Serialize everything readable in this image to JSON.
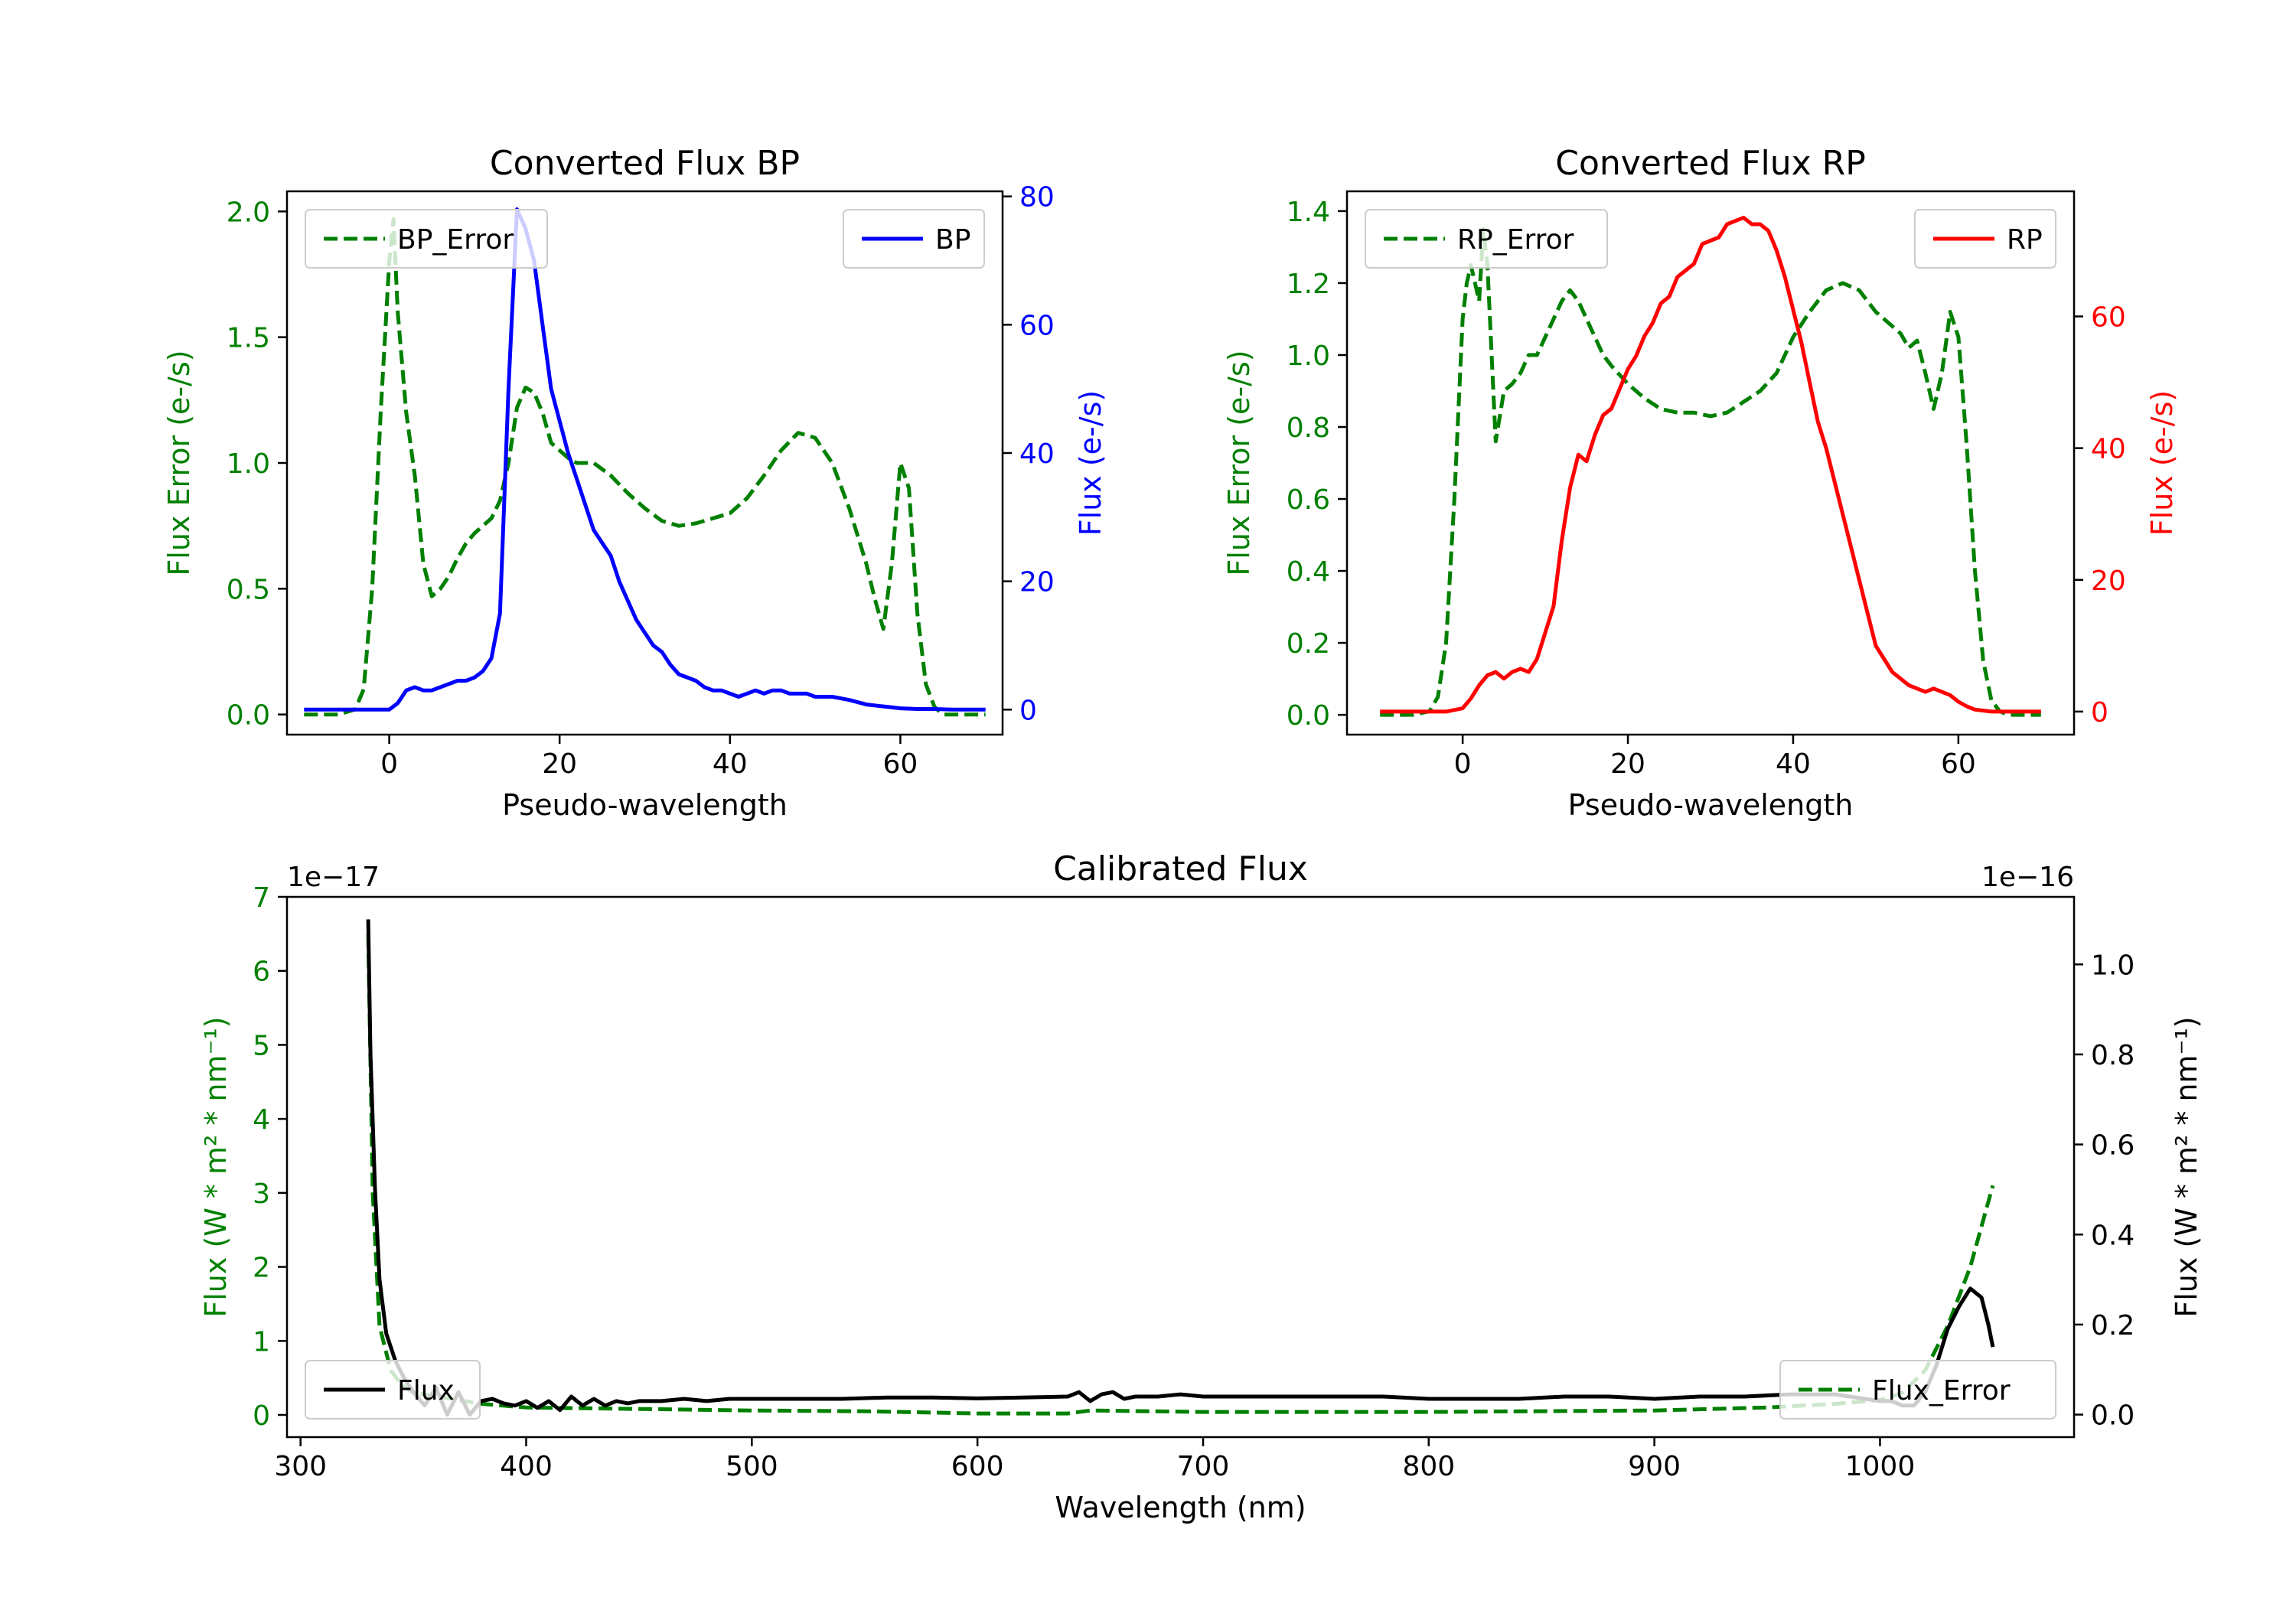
{
  "chart_data": [
    {
      "type": "line",
      "title": "Converted Flux BP",
      "xlabel": "Pseudo-wavelength",
      "ylabel_left": "Flux Error (e-/s)",
      "ylabel_right": "Flux (e-/s)",
      "xlim": [
        -12,
        72
      ],
      "ylim_left": [
        -0.08,
        2.08
      ],
      "ylim_right": [
        -3.9,
        80.8
      ],
      "xticks": [
        "0",
        "20",
        "40",
        "60"
      ],
      "yticks_left": [
        "0.0",
        "0.5",
        "1.0",
        "1.5",
        "2.0"
      ],
      "yticks_right": [
        "0",
        "20",
        "40",
        "60",
        "80"
      ],
      "colors": {
        "error": "#008000",
        "flux": "#0000ff"
      },
      "legend_left": {
        "label": "BP_Error",
        "position": "upper left"
      },
      "legend_right": {
        "label": "BP",
        "position": "upper right"
      },
      "series": [
        {
          "name": "BP_Error",
          "axis": "left",
          "style": "dashed",
          "color": "#008000",
          "x": [
            -10,
            -8,
            -6,
            -4,
            -3,
            -2,
            -1,
            0,
            0.5,
            1,
            2,
            3,
            4,
            5,
            6,
            7,
            8,
            9,
            10,
            12,
            13,
            14,
            15,
            16,
            17,
            18,
            19,
            20,
            21,
            22,
            24,
            26,
            28,
            30,
            32,
            34,
            36,
            38,
            40,
            42,
            44,
            46,
            48,
            50,
            52,
            54,
            56,
            57,
            58,
            59,
            60,
            61,
            62,
            63,
            64,
            65,
            66,
            68,
            70
          ],
          "y": [
            0.0,
            0.0,
            0.0,
            0.02,
            0.1,
            0.5,
            1.2,
            1.8,
            1.97,
            1.6,
            1.2,
            0.95,
            0.6,
            0.47,
            0.5,
            0.55,
            0.62,
            0.68,
            0.72,
            0.78,
            0.85,
            1.0,
            1.22,
            1.3,
            1.28,
            1.2,
            1.08,
            1.05,
            1.02,
            1.0,
            1.0,
            0.95,
            0.88,
            0.82,
            0.77,
            0.75,
            0.76,
            0.78,
            0.8,
            0.86,
            0.95,
            1.05,
            1.12,
            1.1,
            1.0,
            0.82,
            0.6,
            0.46,
            0.34,
            0.6,
            1.0,
            0.9,
            0.4,
            0.12,
            0.03,
            0.0,
            0.0,
            0.0,
            0.0
          ]
        },
        {
          "name": "BP",
          "axis": "right",
          "style": "solid",
          "color": "#0000ff",
          "x": [
            -10,
            -8,
            -6,
            -4,
            -2,
            0,
            1,
            2,
            3,
            4,
            5,
            6,
            7,
            8,
            9,
            10,
            11,
            12,
            13,
            14,
            15,
            16,
            17,
            18,
            19,
            20,
            21,
            22,
            23,
            24,
            25,
            26,
            27,
            28,
            29,
            30,
            31,
            32,
            33,
            34,
            35,
            36,
            37,
            38,
            39,
            40,
            41,
            42,
            43,
            44,
            45,
            46,
            47,
            48,
            49,
            50,
            52,
            54,
            56,
            58,
            60,
            62,
            64,
            66,
            68,
            70
          ],
          "y": [
            0,
            0,
            0,
            0,
            0,
            0,
            1,
            3,
            3.5,
            3,
            3,
            3.5,
            4,
            4.5,
            4.5,
            5,
            6,
            8,
            15,
            50,
            78,
            75,
            70,
            60,
            50,
            45,
            40,
            36,
            32,
            28,
            26,
            24,
            20,
            17,
            14,
            12,
            10,
            9,
            7,
            5.5,
            5,
            4.5,
            3.5,
            3,
            3,
            2.5,
            2,
            2.5,
            3,
            2.5,
            3,
            3,
            2.5,
            2.5,
            2.5,
            2,
            2,
            1.5,
            0.8,
            0.5,
            0.2,
            0.1,
            0.1,
            0,
            0,
            0
          ]
        }
      ]
    },
    {
      "type": "line",
      "title": "Converted Flux RP",
      "xlabel": "Pseudo-wavelength",
      "ylabel_left": "Flux Error (e-/s)",
      "ylabel_right": "Flux (e-/s)",
      "xlim": [
        -14,
        74
      ],
      "ylim_left": [
        -0.055,
        1.455
      ],
      "ylim_right": [
        -3.5,
        79
      ],
      "xticks": [
        "0",
        "20",
        "40",
        "60"
      ],
      "yticks_left": [
        "0.0",
        "0.2",
        "0.4",
        "0.6",
        "0.8",
        "1.0",
        "1.2",
        "1.4"
      ],
      "yticks_right": [
        "0",
        "20",
        "40",
        "60"
      ],
      "colors": {
        "error": "#008000",
        "flux": "#ff0000"
      },
      "legend_left": {
        "label": "RP_Error",
        "position": "upper left"
      },
      "legend_right": {
        "label": "RP",
        "position": "upper right"
      },
      "series": [
        {
          "name": "RP_Error",
          "axis": "left",
          "style": "dashed",
          "color": "#008000",
          "x": [
            -10,
            -6,
            -4,
            -3,
            -2,
            -1,
            0,
            0.5,
            1,
            2,
            2.5,
            3,
            4,
            5,
            6,
            7,
            8,
            9,
            10,
            11,
            12,
            13,
            14,
            15,
            16,
            17,
            18,
            20,
            22,
            24,
            26,
            28,
            30,
            32,
            34,
            36,
            38,
            40,
            42,
            44,
            46,
            48,
            50,
            52,
            53,
            54,
            55,
            56,
            57,
            58,
            59,
            60,
            61,
            62,
            63,
            64,
            65,
            66,
            68,
            70
          ],
          "y": [
            0.0,
            0.0,
            0.01,
            0.05,
            0.2,
            0.6,
            1.1,
            1.2,
            1.25,
            1.15,
            1.35,
            1.25,
            0.76,
            0.9,
            0.92,
            0.95,
            1.0,
            1.0,
            1.05,
            1.1,
            1.15,
            1.18,
            1.15,
            1.1,
            1.05,
            1.0,
            0.97,
            0.92,
            0.88,
            0.85,
            0.84,
            0.84,
            0.83,
            0.84,
            0.87,
            0.9,
            0.95,
            1.05,
            1.12,
            1.18,
            1.2,
            1.18,
            1.12,
            1.08,
            1.06,
            1.02,
            1.04,
            0.95,
            0.85,
            0.95,
            1.12,
            1.05,
            0.75,
            0.4,
            0.15,
            0.04,
            0.01,
            0.0,
            0.0,
            0.0
          ]
        },
        {
          "name": "RP",
          "axis": "right",
          "style": "solid",
          "color": "#ff0000",
          "x": [
            -10,
            -6,
            -4,
            -2,
            0,
            1,
            2,
            3,
            4,
            5,
            6,
            7,
            8,
            9,
            10,
            11,
            12,
            13,
            14,
            15,
            16,
            17,
            18,
            19,
            20,
            21,
            22,
            23,
            24,
            25,
            26,
            27,
            28,
            29,
            30,
            31,
            32,
            33,
            34,
            35,
            36,
            37,
            38,
            39,
            40,
            41,
            42,
            43,
            44,
            45,
            46,
            47,
            48,
            49,
            50,
            51,
            52,
            53,
            54,
            55,
            56,
            57,
            58,
            59,
            60,
            61,
            62,
            64,
            66,
            68,
            70
          ],
          "y": [
            0,
            0,
            0,
            0,
            0.5,
            2,
            4,
            5.5,
            6,
            5,
            6,
            6.5,
            6,
            8,
            12,
            16,
            26,
            34,
            39,
            38,
            42,
            45,
            46,
            49,
            52,
            54,
            57,
            59,
            62,
            63,
            66,
            67,
            68,
            71,
            71.5,
            72,
            74,
            74.5,
            75,
            74,
            74,
            73,
            70,
            66,
            61,
            56,
            50,
            44,
            40,
            35,
            30,
            25,
            20,
            15,
            10,
            8,
            6,
            5,
            4,
            3.5,
            3,
            3.5,
            3,
            2.5,
            1.5,
            0.8,
            0.3,
            0,
            0,
            0,
            0
          ]
        }
      ]
    },
    {
      "type": "line",
      "title": "Calibrated Flux",
      "xlabel": "Wavelength (nm)",
      "ylabel_left": "Flux (W * m² * nm⁻¹)",
      "ylabel_right": "Flux (W * m² * nm⁻¹)",
      "offset_left": "1e−17",
      "offset_right": "1e−16",
      "xlim": [
        294,
        1086
      ],
      "ylim_left": [
        -0.3,
        7
      ],
      "ylim_right": [
        -0.05,
        1.15
      ],
      "xticks": [
        "300",
        "400",
        "500",
        "600",
        "700",
        "800",
        "900",
        "1000"
      ],
      "yticks_left": [
        "0",
        "1",
        "2",
        "3",
        "4",
        "5",
        "6",
        "7"
      ],
      "yticks_right": [
        "0.0",
        "0.2",
        "0.4",
        "0.6",
        "0.8",
        "1.0"
      ],
      "colors": {
        "error": "#008000",
        "flux": "#000000"
      },
      "legend_left": {
        "label": "Flux",
        "position": "lower left"
      },
      "legend_right": {
        "label": "Flux_Error",
        "position": "lower right"
      },
      "series": [
        {
          "name": "Flux_Error",
          "axis": "left",
          "style": "dashed",
          "color": "#008000",
          "x": [
            330,
            332,
            335,
            340,
            345,
            350,
            360,
            370,
            380,
            400,
            450,
            500,
            550,
            600,
            640,
            650,
            700,
            800,
            900,
            950,
            980,
            1000,
            1010,
            1020,
            1030,
            1040,
            1050
          ],
          "y": [
            6.5,
            3.0,
            1.2,
            0.6,
            0.4,
            0.3,
            0.25,
            0.2,
            0.15,
            0.1,
            0.08,
            0.06,
            0.05,
            0.02,
            0.02,
            0.06,
            0.04,
            0.04,
            0.06,
            0.1,
            0.15,
            0.2,
            0.3,
            0.6,
            1.2,
            2.0,
            3.1
          ]
        },
        {
          "name": "Flux",
          "axis": "right",
          "style": "solid",
          "color": "#000000",
          "x": [
            330,
            331,
            333,
            335,
            338,
            342,
            346,
            350,
            355,
            360,
            365,
            370,
            375,
            380,
            385,
            390,
            395,
            400,
            405,
            410,
            415,
            420,
            425,
            430,
            435,
            440,
            445,
            450,
            460,
            470,
            480,
            490,
            500,
            520,
            540,
            560,
            580,
            600,
            620,
            640,
            645,
            650,
            655,
            660,
            665,
            670,
            680,
            690,
            700,
            710,
            720,
            740,
            760,
            780,
            800,
            820,
            840,
            860,
            880,
            900,
            920,
            940,
            960,
            980,
            1000,
            1005,
            1010,
            1015,
            1020,
            1025,
            1030,
            1035,
            1040,
            1045,
            1048,
            1050
          ],
          "y": [
            1.1,
            0.8,
            0.5,
            0.3,
            0.18,
            0.12,
            0.08,
            0.05,
            0.02,
            0.06,
            0.0,
            0.05,
            0.0,
            0.03,
            0.035,
            0.025,
            0.02,
            0.03,
            0.015,
            0.03,
            0.01,
            0.04,
            0.02,
            0.035,
            0.02,
            0.03,
            0.025,
            0.03,
            0.03,
            0.035,
            0.03,
            0.035,
            0.035,
            0.035,
            0.035,
            0.038,
            0.038,
            0.036,
            0.038,
            0.04,
            0.05,
            0.03,
            0.045,
            0.05,
            0.035,
            0.04,
            0.04,
            0.045,
            0.04,
            0.04,
            0.04,
            0.04,
            0.04,
            0.04,
            0.035,
            0.035,
            0.035,
            0.04,
            0.04,
            0.035,
            0.04,
            0.04,
            0.045,
            0.045,
            0.03,
            0.03,
            0.02,
            0.02,
            0.05,
            0.11,
            0.19,
            0.24,
            0.28,
            0.26,
            0.2,
            0.15
          ]
        }
      ]
    }
  ]
}
